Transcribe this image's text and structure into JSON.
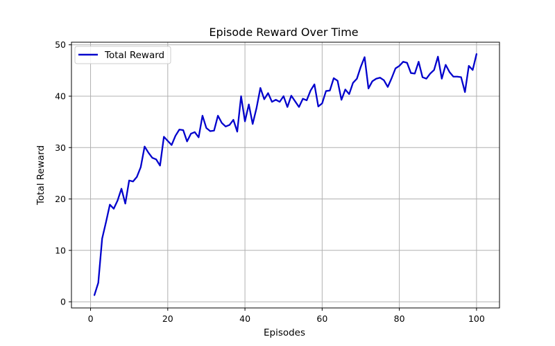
{
  "chart_data": {
    "type": "line",
    "title": "Episode Reward Over Time",
    "xlabel": "Episodes",
    "ylabel": "Total Reward",
    "xlim": [
      -4.95,
      105.95
    ],
    "ylim": [
      -1.2,
      50.5
    ],
    "xticks": [
      0,
      20,
      40,
      60,
      80,
      100
    ],
    "yticks": [
      0,
      10,
      20,
      30,
      40,
      50
    ],
    "grid": true,
    "legend_position": "top-left",
    "series": [
      {
        "name": "Total Reward",
        "color": "#0000cc",
        "x": [
          1,
          2,
          3,
          4,
          5,
          6,
          7,
          8,
          9,
          10,
          11,
          12,
          13,
          14,
          15,
          16,
          17,
          18,
          19,
          20,
          21,
          22,
          23,
          24,
          25,
          26,
          27,
          28,
          29,
          30,
          31,
          32,
          33,
          34,
          35,
          36,
          37,
          38,
          39,
          40,
          41,
          42,
          43,
          44,
          45,
          46,
          47,
          48,
          49,
          50,
          51,
          52,
          53,
          54,
          55,
          56,
          57,
          58,
          59,
          60,
          61,
          62,
          63,
          64,
          65,
          66,
          67,
          68,
          69,
          70,
          71,
          72,
          73,
          74,
          75,
          76,
          77,
          78,
          79,
          80,
          81,
          82,
          83,
          84,
          85,
          86,
          87,
          88,
          89,
          90,
          91,
          92,
          93,
          94,
          95,
          96,
          97,
          98,
          99,
          100
        ],
        "y": [
          1.3,
          3.7,
          12.3,
          15.5,
          18.9,
          18.1,
          19.7,
          22.0,
          19.1,
          23.6,
          23.4,
          24.3,
          26.2,
          30.2,
          29.0,
          28.0,
          27.7,
          26.5,
          32.1,
          31.3,
          30.5,
          32.3,
          33.5,
          33.4,
          31.2,
          32.7,
          33.0,
          32.0,
          36.2,
          33.8,
          33.2,
          33.3,
          36.2,
          34.8,
          34.1,
          34.4,
          35.4,
          33.1,
          40.0,
          35.1,
          38.4,
          34.6,
          37.7,
          41.6,
          39.4,
          40.6,
          38.9,
          39.3,
          38.9,
          40.0,
          37.9,
          40.1,
          39.0,
          37.9,
          39.5,
          39.2,
          41.1,
          42.3,
          38.0,
          38.6,
          41.0,
          41.1,
          43.5,
          43.0,
          39.3,
          41.3,
          40.4,
          42.6,
          43.4,
          45.7,
          47.6,
          41.5,
          42.9,
          43.4,
          43.6,
          43.1,
          41.8,
          43.5,
          45.4,
          45.9,
          46.7,
          46.5,
          44.5,
          44.4,
          46.7,
          43.7,
          43.4,
          44.4,
          45.1,
          47.7,
          43.4,
          46.1,
          44.7,
          43.8,
          43.8,
          43.7,
          40.8,
          45.9,
          45.1,
          48.2
        ]
      }
    ]
  }
}
